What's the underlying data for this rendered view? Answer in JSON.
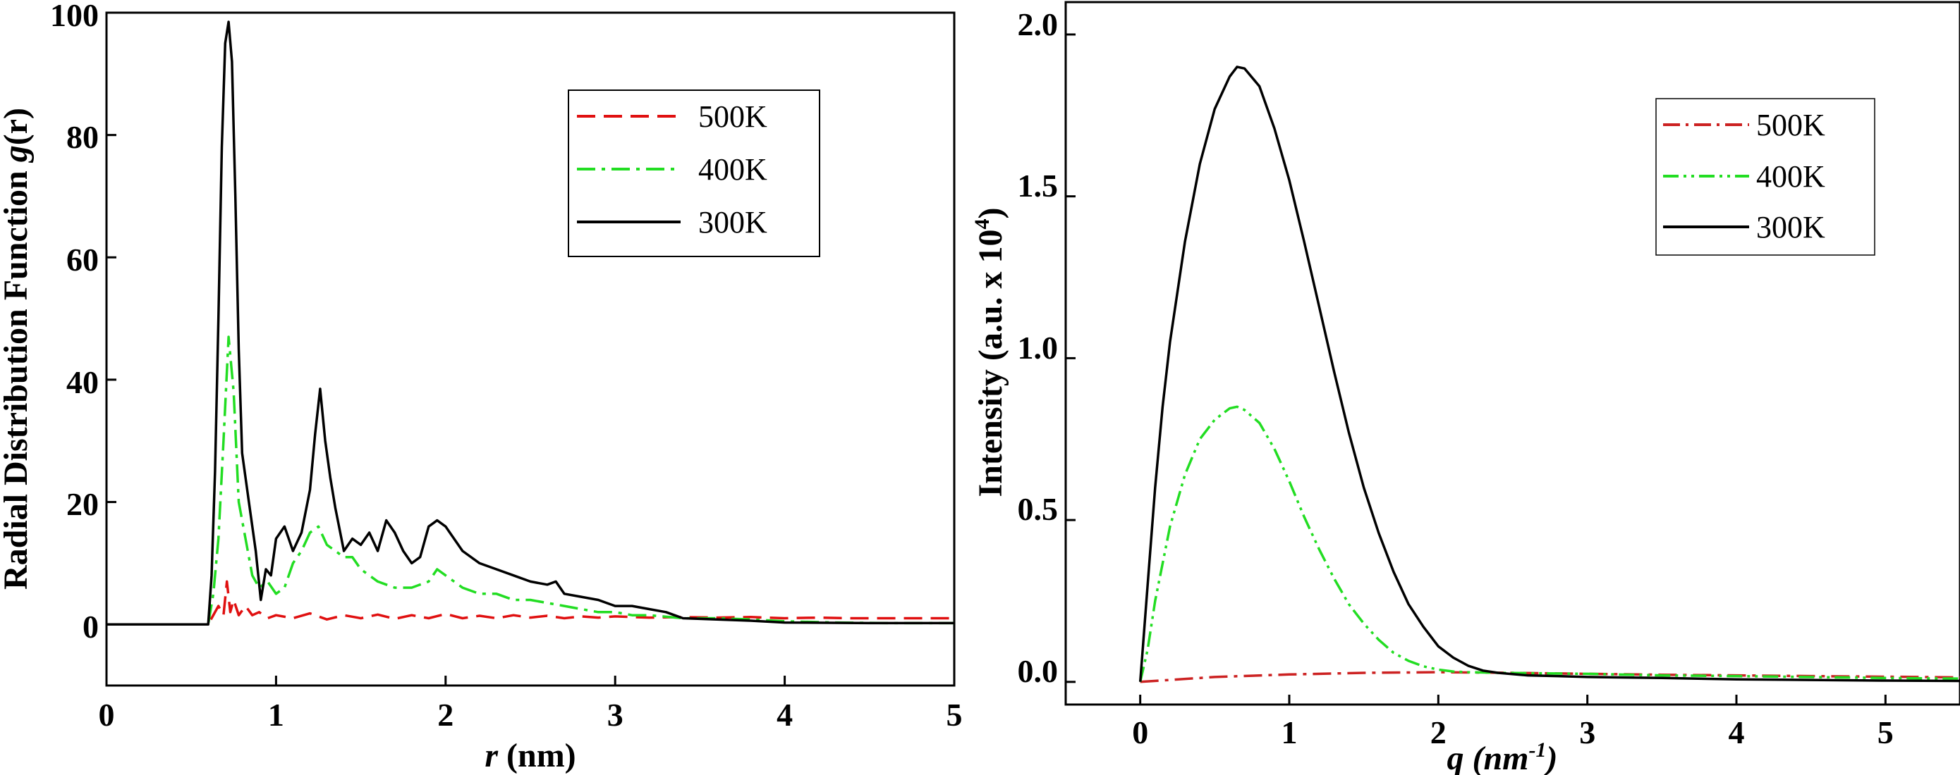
{
  "chart_data": [
    {
      "id": "rdf",
      "type": "line",
      "title": "",
      "ylabel": "Radial Distribution Function g(r)",
      "ylabel_parts": {
        "pre": "Radial Distribution Function ",
        "italic": "g",
        "post": "(r)"
      },
      "xlabel": "r (nm)",
      "xlabel_parts": {
        "italic": "r",
        "post": " (nm)"
      },
      "xlim": [
        0,
        5
      ],
      "ylim": [
        -10,
        100
      ],
      "xticks": [
        0,
        1,
        2,
        3,
        4,
        5
      ],
      "yticks": [
        0,
        20,
        40,
        60,
        80,
        100
      ],
      "xtick_labels": [
        "0",
        "1",
        "2",
        "3",
        "4",
        "5"
      ],
      "ytick_labels": [
        "0",
        "20",
        "40",
        "60",
        "80",
        "100"
      ],
      "legend_position": "top-right",
      "series": [
        {
          "name": "500K",
          "label": "500K",
          "color": "#e01010",
          "dash": "dashed",
          "x": [
            0,
            0.6,
            0.66,
            0.69,
            0.71,
            0.73,
            0.75,
            0.78,
            0.82,
            0.86,
            0.9,
            0.95,
            1.0,
            1.1,
            1.2,
            1.3,
            1.4,
            1.5,
            1.6,
            1.7,
            1.8,
            1.9,
            2.0,
            2.1,
            2.2,
            2.3,
            2.4,
            2.5,
            2.6,
            2.7,
            2.8,
            2.9,
            3.0,
            3.2,
            3.4,
            3.6,
            3.8,
            4.0,
            4.2,
            4.4,
            4.6,
            4.8,
            5.0
          ],
          "y": [
            0,
            0,
            3,
            1.5,
            7,
            2,
            4,
            1.5,
            3,
            1.5,
            2,
            1,
            1.5,
            1,
            1.8,
            0.8,
            1.5,
            1,
            1.6,
            0.9,
            1.5,
            1,
            1.7,
            1,
            1.4,
            1,
            1.5,
            1.1,
            1.4,
            1,
            1.3,
            1.1,
            1.3,
            1.1,
            1.2,
            1.1,
            1.2,
            1.0,
            1.1,
            1.0,
            1.0,
            1.0,
            1.0
          ]
        },
        {
          "name": "400K",
          "label": "400K",
          "color": "#22dd22",
          "dash": "dashdot",
          "x": [
            0,
            0.6,
            0.63,
            0.66,
            0.69,
            0.72,
            0.75,
            0.78,
            0.82,
            0.86,
            0.9,
            0.95,
            1.0,
            1.05,
            1.1,
            1.15,
            1.2,
            1.25,
            1.3,
            1.35,
            1.4,
            1.45,
            1.5,
            1.55,
            1.6,
            1.7,
            1.8,
            1.9,
            1.95,
            2.0,
            2.1,
            2.2,
            2.3,
            2.4,
            2.5,
            2.6,
            2.7,
            2.8,
            2.9,
            3.0,
            3.1,
            3.2,
            3.4,
            3.6,
            3.8,
            4.0,
            4.3,
            4.6,
            5.0
          ],
          "y": [
            0,
            0,
            5,
            14,
            30,
            47,
            38,
            20,
            14,
            8,
            6,
            7,
            5,
            6,
            10,
            12,
            15,
            16,
            13,
            12,
            11,
            11,
            9,
            8,
            7,
            6,
            6,
            7,
            9,
            8,
            6,
            5,
            5,
            4,
            4,
            3.5,
            3,
            2.5,
            2,
            2,
            1.5,
            1.5,
            1,
            1,
            0.8,
            0.5,
            0.3,
            0.2,
            0.2
          ]
        },
        {
          "name": "300K",
          "label": "300K",
          "color": "#000000",
          "dash": "solid",
          "x": [
            0,
            0.6,
            0.62,
            0.64,
            0.66,
            0.68,
            0.7,
            0.72,
            0.74,
            0.76,
            0.78,
            0.8,
            0.84,
            0.88,
            0.91,
            0.94,
            0.97,
            1.0,
            1.05,
            1.1,
            1.15,
            1.2,
            1.23,
            1.26,
            1.29,
            1.32,
            1.35,
            1.4,
            1.45,
            1.5,
            1.55,
            1.6,
            1.65,
            1.7,
            1.75,
            1.8,
            1.85,
            1.9,
            1.95,
            2.0,
            2.1,
            2.2,
            2.3,
            2.4,
            2.5,
            2.6,
            2.65,
            2.7,
            2.8,
            2.9,
            3.0,
            3.1,
            3.2,
            3.3,
            3.4,
            3.6,
            3.8,
            4.0,
            4.5,
            5.0
          ],
          "y": [
            0,
            0,
            8,
            25,
            50,
            78,
            95,
            98.5,
            92,
            70,
            45,
            28,
            20,
            12,
            4,
            9,
            8,
            14,
            16,
            12,
            15,
            22,
            31,
            38.5,
            30,
            24,
            19,
            12,
            14,
            13,
            15,
            12,
            17,
            15,
            12,
            10,
            11,
            16,
            17,
            16,
            12,
            10,
            9,
            8,
            7,
            6.5,
            7,
            5,
            4.5,
            4,
            3,
            3,
            2.5,
            2,
            1,
            0.8,
            0.6,
            0.3,
            0.2,
            0.2
          ]
        }
      ]
    },
    {
      "id": "scattering",
      "type": "line",
      "title": "",
      "ylabel": "Intensity (a.u. x 10^4)",
      "ylabel_parts": {
        "pre": "Intensity (a.u. x 10",
        "sup": "4",
        "post": ")"
      },
      "xlabel": "q (nm^-1)",
      "xlabel_parts": {
        "italic": "q (nm",
        "sup": "-1",
        "post": ")"
      },
      "xlim": [
        -0.5,
        5.5
      ],
      "ylim": [
        -0.07,
        2.1
      ],
      "xticks": [
        0,
        1,
        2,
        3,
        4,
        5
      ],
      "yticks": [
        0.0,
        0.5,
        1.0,
        1.5,
        2.0
      ],
      "xtick_labels": [
        "0",
        "1",
        "2",
        "3",
        "4",
        "5"
      ],
      "ytick_labels": [
        "0.0",
        "0.5",
        "1.0",
        "1.5",
        "2.0"
      ],
      "legend_position": "top-right",
      "series": [
        {
          "name": "500K",
          "label": "500K",
          "color": "#cc2222",
          "dash": "dashdot",
          "x": [
            0,
            0.5,
            1.0,
            1.5,
            2.0,
            2.5,
            3.0,
            3.5,
            4.0,
            4.5,
            5.0,
            5.5
          ],
          "y": [
            0.0,
            0.015,
            0.023,
            0.028,
            0.03,
            0.028,
            0.025,
            0.022,
            0.02,
            0.018,
            0.016,
            0.014
          ]
        },
        {
          "name": "400K",
          "label": "400K",
          "color": "#22dd22",
          "dash": "dashdotdot",
          "x": [
            0,
            0.05,
            0.1,
            0.2,
            0.3,
            0.4,
            0.5,
            0.6,
            0.65,
            0.7,
            0.8,
            0.9,
            1.0,
            1.1,
            1.2,
            1.3,
            1.4,
            1.5,
            1.6,
            1.7,
            1.8,
            1.9,
            2.0,
            2.1,
            2.2,
            2.4,
            2.6,
            3.0,
            3.5,
            4.0,
            5.0,
            5.5
          ],
          "y": [
            0.0,
            0.1,
            0.25,
            0.48,
            0.64,
            0.75,
            0.81,
            0.845,
            0.85,
            0.84,
            0.8,
            0.72,
            0.62,
            0.51,
            0.41,
            0.32,
            0.24,
            0.18,
            0.13,
            0.09,
            0.065,
            0.048,
            0.038,
            0.032,
            0.03,
            0.028,
            0.027,
            0.025,
            0.02,
            0.018,
            0.012,
            0.01
          ]
        },
        {
          "name": "300K",
          "label": "300K",
          "color": "#000000",
          "dash": "solid",
          "x": [
            0,
            0.05,
            0.1,
            0.15,
            0.2,
            0.3,
            0.4,
            0.5,
            0.6,
            0.65,
            0.7,
            0.8,
            0.9,
            1.0,
            1.1,
            1.2,
            1.3,
            1.4,
            1.5,
            1.6,
            1.7,
            1.8,
            1.9,
            2.0,
            2.1,
            2.2,
            2.3,
            2.4,
            2.6,
            2.8,
            3.0,
            3.5,
            4.0,
            4.5,
            5.0,
            5.5
          ],
          "y": [
            0.0,
            0.3,
            0.6,
            0.85,
            1.05,
            1.36,
            1.6,
            1.77,
            1.87,
            1.9,
            1.895,
            1.84,
            1.71,
            1.55,
            1.36,
            1.16,
            0.96,
            0.77,
            0.6,
            0.46,
            0.34,
            0.24,
            0.17,
            0.11,
            0.075,
            0.05,
            0.035,
            0.028,
            0.02,
            0.018,
            0.015,
            0.012,
            0.008,
            0.006,
            0.004,
            0.003
          ]
        }
      ]
    }
  ]
}
